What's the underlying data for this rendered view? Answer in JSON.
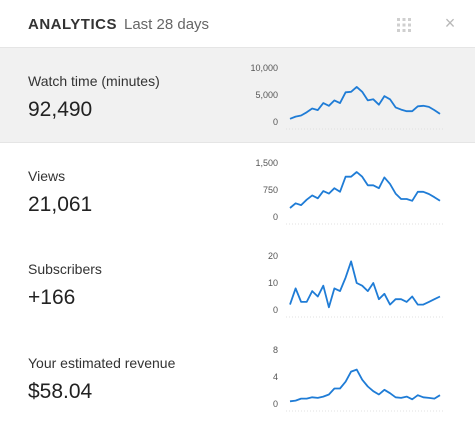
{
  "header": {
    "title": "ANALYTICS",
    "subtitle": "Last 28 days",
    "drag_icon": "grid-drag-icon",
    "close_icon": "close-icon",
    "close_glyph": "×"
  },
  "colors": {
    "line": "#1f7cd6",
    "highlight_bg": "#f1f1f1",
    "divider": "#e5e5e5"
  },
  "metrics": [
    {
      "label": "Watch time (minutes)",
      "value": "92,490"
    },
    {
      "label": "Views",
      "value": "21,061"
    },
    {
      "label": "Subscribers",
      "value": "+166"
    },
    {
      "label": "Your estimated revenue",
      "value": "$58.04"
    }
  ],
  "chart_data": [
    {
      "type": "line",
      "series_of": "Watch time (minutes)",
      "yticks": [
        "10,000",
        "5,000",
        "0"
      ],
      "ytick_values": [
        10000,
        5000,
        0
      ],
      "ylim": [
        0,
        10000
      ],
      "values": [
        600,
        1000,
        1200,
        1800,
        2500,
        2200,
        3500,
        3000,
        4000,
        3500,
        5500,
        5600,
        6500,
        5600,
        4000,
        4200,
        3200,
        4800,
        4200,
        2700,
        2300,
        2000,
        2000,
        2900,
        3000,
        2800,
        2200,
        1500
      ]
    },
    {
      "type": "line",
      "series_of": "Views",
      "yticks": [
        "1,500",
        "750",
        "0"
      ],
      "ytick_values": [
        1500,
        750,
        0
      ],
      "ylim": [
        0,
        1500
      ],
      "values": [
        250,
        380,
        330,
        480,
        600,
        520,
        720,
        650,
        800,
        700,
        1120,
        1120,
        1250,
        1120,
        880,
        880,
        800,
        1100,
        920,
        650,
        500,
        500,
        450,
        700,
        700,
        640,
        550,
        450
      ]
    },
    {
      "type": "line",
      "series_of": "Subscribers",
      "yticks": [
        "20",
        "10",
        "0"
      ],
      "ytick_values": [
        20,
        10,
        0
      ],
      "ylim": [
        0,
        20
      ],
      "values": [
        2,
        8,
        3,
        3,
        7,
        5,
        9,
        1,
        8,
        7,
        12,
        18,
        10,
        9,
        7,
        10,
        4,
        6,
        2,
        4,
        4,
        3,
        5,
        2,
        2,
        3,
        4,
        5
      ]
    },
    {
      "type": "line",
      "series_of": "Your estimated revenue",
      "yticks": [
        "8",
        "4",
        "0"
      ],
      "ytick_values": [
        8,
        4,
        0
      ],
      "ylim": [
        0,
        8
      ],
      "values": [
        0.4,
        0.5,
        0.8,
        0.8,
        1.0,
        0.9,
        1.1,
        1.4,
        2.3,
        2.3,
        3.3,
        4.8,
        5.1,
        3.6,
        2.6,
        1.9,
        1.4,
        2.1,
        1.6,
        1.0,
        0.9,
        1.1,
        0.7,
        1.3,
        1.0,
        0.9,
        0.8,
        1.3
      ]
    }
  ]
}
